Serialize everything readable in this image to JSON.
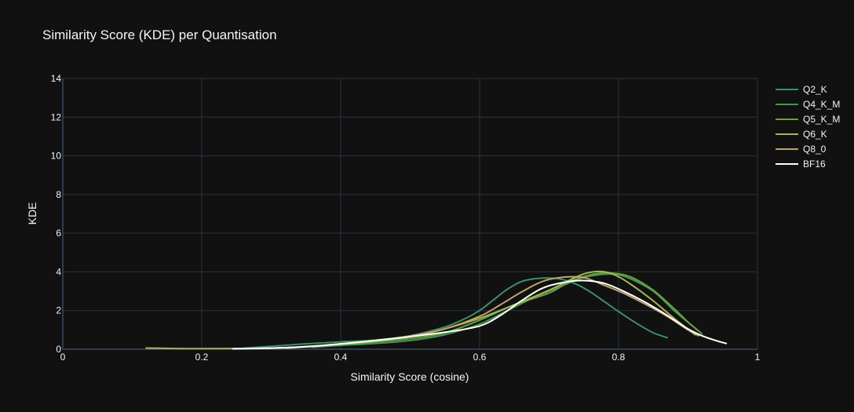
{
  "chart_data": {
    "type": "line",
    "title": "Similarity Score (KDE) per Quantisation",
    "xlabel": "Similarity Score (cosine)",
    "ylabel": "KDE",
    "xlim": [
      0,
      1
    ],
    "ylim": [
      0,
      14
    ],
    "xticks": [
      0,
      0.2,
      0.4,
      0.6,
      0.8,
      1
    ],
    "xtick_labels": [
      "0",
      "0.2",
      "0.4",
      "0.6",
      "0.8",
      "1"
    ],
    "yticks": [
      0,
      2,
      4,
      6,
      8,
      10,
      12,
      14
    ],
    "ytick_labels": [
      "0",
      "2",
      "4",
      "6",
      "8",
      "10",
      "12",
      "14"
    ],
    "grid": true,
    "legend_position": "top-right",
    "background": "#111111",
    "series": [
      {
        "name": "Q2_K",
        "color": "#3b8f6a",
        "x": [
          0.26,
          0.3,
          0.35,
          0.4,
          0.45,
          0.5,
          0.55,
          0.58,
          0.6,
          0.62,
          0.64,
          0.66,
          0.68,
          0.7,
          0.72,
          0.74,
          0.76,
          0.78,
          0.8,
          0.83,
          0.85,
          0.87
        ],
        "y": [
          0.05,
          0.15,
          0.28,
          0.38,
          0.48,
          0.7,
          1.15,
          1.6,
          2.0,
          2.55,
          3.1,
          3.5,
          3.65,
          3.68,
          3.6,
          3.35,
          2.95,
          2.45,
          1.95,
          1.25,
          0.85,
          0.6
        ]
      },
      {
        "name": "Q4_K_M",
        "color": "#3d9a4a",
        "x": [
          0.36,
          0.4,
          0.45,
          0.5,
          0.55,
          0.6,
          0.64,
          0.68,
          0.72,
          0.75,
          0.78,
          0.8,
          0.82,
          0.85,
          0.88,
          0.9,
          0.92
        ],
        "y": [
          0.1,
          0.2,
          0.3,
          0.45,
          0.75,
          1.3,
          2.0,
          2.7,
          3.3,
          3.7,
          3.88,
          3.85,
          3.6,
          3.0,
          2.0,
          1.4,
          0.8
        ]
      },
      {
        "name": "Q5_K_M",
        "color": "#6f9e3f",
        "x": [
          0.32,
          0.35,
          0.4,
          0.45,
          0.5,
          0.55,
          0.6,
          0.65,
          0.7,
          0.73,
          0.76,
          0.78,
          0.8,
          0.82,
          0.85,
          0.88,
          0.9,
          0.915
        ],
        "y": [
          0.05,
          0.12,
          0.25,
          0.38,
          0.55,
          0.85,
          1.5,
          2.3,
          2.9,
          3.5,
          3.85,
          3.95,
          3.9,
          3.7,
          3.05,
          2.1,
          1.4,
          0.95
        ]
      },
      {
        "name": "Q6_K",
        "color": "#a7b45d",
        "x": [
          0.12,
          0.2,
          0.3,
          0.35,
          0.4,
          0.45,
          0.5,
          0.55,
          0.6,
          0.65,
          0.7,
          0.74,
          0.76,
          0.78,
          0.8,
          0.82,
          0.85,
          0.88,
          0.91
        ],
        "y": [
          0.06,
          0.03,
          0.06,
          0.12,
          0.25,
          0.42,
          0.65,
          1.05,
          1.6,
          2.3,
          3.05,
          3.75,
          3.98,
          4.0,
          3.75,
          3.3,
          2.5,
          1.6,
          0.75
        ]
      },
      {
        "name": "Q8_0",
        "color": "#c0a36f",
        "x": [
          0.28,
          0.32,
          0.36,
          0.4,
          0.45,
          0.5,
          0.55,
          0.6,
          0.63,
          0.66,
          0.69,
          0.72,
          0.75,
          0.78,
          0.81,
          0.84,
          0.87,
          0.9,
          0.915
        ],
        "y": [
          0.03,
          0.08,
          0.16,
          0.28,
          0.45,
          0.68,
          1.05,
          1.7,
          2.3,
          2.95,
          3.5,
          3.72,
          3.7,
          3.3,
          2.85,
          2.3,
          1.7,
          1.0,
          0.7
        ]
      },
      {
        "name": "BF16",
        "color": "#ffffff",
        "x": [
          0.245,
          0.28,
          0.32,
          0.36,
          0.4,
          0.45,
          0.5,
          0.55,
          0.6,
          0.63,
          0.66,
          0.69,
          0.72,
          0.75,
          0.78,
          0.81,
          0.84,
          0.87,
          0.9,
          0.92,
          0.94,
          0.955
        ],
        "y": [
          0.02,
          0.04,
          0.08,
          0.16,
          0.28,
          0.45,
          0.65,
          0.88,
          1.2,
          1.75,
          2.5,
          3.15,
          3.45,
          3.55,
          3.4,
          2.95,
          2.4,
          1.75,
          1.05,
          0.7,
          0.45,
          0.3
        ]
      }
    ]
  }
}
